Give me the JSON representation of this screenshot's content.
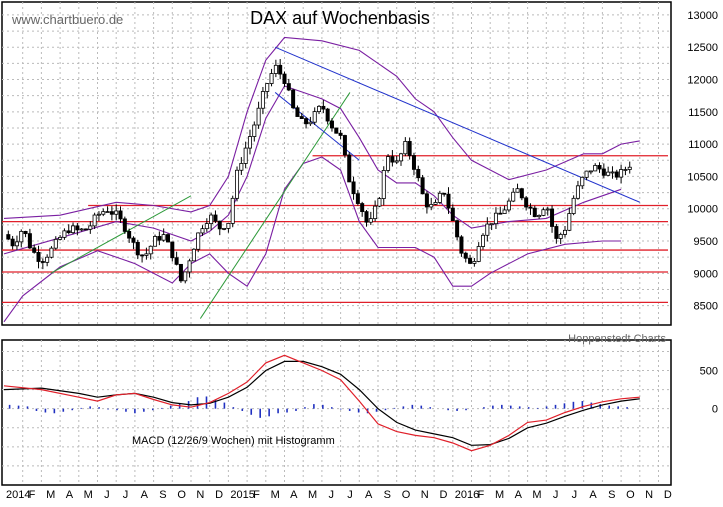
{
  "watermark": "www.chartbuero.de",
  "credit": "Hoppenstedt Charts",
  "chart_data": [
    {
      "type": "candlestick",
      "title": "DAX auf Wochenbasis",
      "xlabel": "",
      "ylabel": "",
      "ylim": [
        8200,
        13200
      ],
      "x_ticks": [
        "2014",
        "F",
        "M",
        "A",
        "M",
        "J",
        "J",
        "A",
        "S",
        "O",
        "N",
        "D",
        "2015",
        "F",
        "M",
        "A",
        "M",
        "J",
        "J",
        "A",
        "S",
        "O",
        "N",
        "D",
        "2016",
        "F",
        "M",
        "A",
        "M",
        "J",
        "J",
        "A",
        "S",
        "O",
        "N",
        "D"
      ],
      "y_ticks": [
        8500,
        9000,
        9500,
        10000,
        10500,
        11000,
        11500,
        12000,
        12500,
        13000
      ],
      "horizontal_levels": [
        8550,
        9020,
        9360,
        9800,
        10050,
        10820
      ],
      "close_path": [
        [
          0.0,
          9600
        ],
        [
          0.5,
          9450
        ],
        [
          1.0,
          9700
        ],
        [
          1.5,
          9350
        ],
        [
          2.0,
          9200
        ],
        [
          2.5,
          9350
        ],
        [
          3.0,
          9550
        ],
        [
          3.5,
          9700
        ],
        [
          4.0,
          9650
        ],
        [
          4.5,
          9700
        ],
        [
          5.0,
          9900
        ],
        [
          5.5,
          10000
        ],
        [
          6.0,
          9900
        ],
        [
          6.5,
          9700
        ],
        [
          7.0,
          9400
        ],
        [
          7.5,
          9250
        ],
        [
          8.0,
          9500
        ],
        [
          8.5,
          9600
        ],
        [
          9.0,
          9300
        ],
        [
          9.5,
          8850
        ],
        [
          10.0,
          9300
        ],
        [
          10.5,
          9700
        ],
        [
          11.0,
          9900
        ],
        [
          11.5,
          9700
        ],
        [
          12.0,
          9800
        ],
        [
          12.5,
          10600
        ],
        [
          13.0,
          11000
        ],
        [
          13.5,
          11400
        ],
        [
          14.0,
          11900
        ],
        [
          14.5,
          12200
        ],
        [
          15.0,
          12000
        ],
        [
          15.5,
          11500
        ],
        [
          16.0,
          11300
        ],
        [
          16.5,
          11400
        ],
        [
          17.0,
          11600
        ],
        [
          17.5,
          11300
        ],
        [
          18.0,
          11100
        ],
        [
          18.5,
          10400
        ],
        [
          19.0,
          10100
        ],
        [
          19.5,
          9700
        ],
        [
          20.0,
          10100
        ],
        [
          20.5,
          10850
        ],
        [
          21.0,
          10700
        ],
        [
          21.5,
          11000
        ],
        [
          22.0,
          10600
        ],
        [
          22.5,
          10100
        ],
        [
          23.0,
          10000
        ],
        [
          23.5,
          10300
        ],
        [
          24.0,
          9800
        ],
        [
          24.5,
          9300
        ],
        [
          25.0,
          9100
        ],
        [
          25.5,
          9600
        ],
        [
          26.0,
          9800
        ],
        [
          26.5,
          9900
        ],
        [
          27.0,
          10100
        ],
        [
          27.5,
          10300
        ],
        [
          28.0,
          10050
        ],
        [
          28.5,
          9900
        ],
        [
          29.0,
          10100
        ],
        [
          29.5,
          9500
        ],
        [
          30.0,
          9700
        ],
        [
          30.5,
          10200
        ],
        [
          31.0,
          10500
        ],
        [
          31.5,
          10650
        ],
        [
          32.0,
          10600
        ],
        [
          32.5,
          10500
        ],
        [
          33.0,
          10550
        ],
        [
          33.5,
          10700
        ]
      ],
      "trend_lines": [
        {
          "from": [
            10.5,
            8300
          ],
          "to": [
            18.5,
            11800
          ]
        },
        {
          "from": [
            2.5,
            9000
          ],
          "to": [
            10.0,
            10200
          ]
        },
        {
          "from": [
            14.5,
            12500
          ],
          "to": [
            34.0,
            10100
          ]
        },
        {
          "from": [
            14.5,
            11800
          ],
          "to": [
            19.0,
            10750
          ]
        }
      ],
      "bollinger": {
        "upper": [
          [
            0,
            9850
          ],
          [
            3,
            9900
          ],
          [
            6,
            10100
          ],
          [
            8,
            10050
          ],
          [
            10,
            9950
          ],
          [
            11,
            10050
          ],
          [
            12,
            10500
          ],
          [
            13,
            11500
          ],
          [
            14,
            12300
          ],
          [
            15,
            12650
          ],
          [
            17,
            12600
          ],
          [
            19,
            12450
          ],
          [
            21,
            12050
          ],
          [
            22,
            11700
          ],
          [
            23,
            11500
          ],
          [
            24,
            11100
          ],
          [
            25,
            10750
          ],
          [
            27,
            10450
          ],
          [
            29,
            10600
          ],
          [
            31,
            10850
          ],
          [
            32,
            10850
          ],
          [
            33,
            11000
          ],
          [
            34,
            11050
          ]
        ],
        "lower": [
          [
            0,
            8250
          ],
          [
            1,
            8650
          ],
          [
            3,
            9100
          ],
          [
            5,
            9350
          ],
          [
            7,
            9150
          ],
          [
            9,
            8850
          ],
          [
            10,
            9150
          ],
          [
            11,
            9300
          ],
          [
            12,
            9000
          ],
          [
            13,
            8800
          ],
          [
            14,
            9300
          ],
          [
            15,
            10300
          ],
          [
            16,
            10700
          ],
          [
            17,
            10800
          ],
          [
            18,
            10600
          ],
          [
            19,
            9800
          ],
          [
            20,
            9400
          ],
          [
            22,
            9400
          ],
          [
            23,
            9250
          ],
          [
            24,
            8800
          ],
          [
            25,
            8800
          ],
          [
            26,
            9000
          ],
          [
            28,
            9300
          ],
          [
            30,
            9450
          ],
          [
            32,
            9500
          ],
          [
            33,
            9500
          ]
        ],
        "middle": [
          [
            0,
            9300
          ],
          [
            3,
            9550
          ],
          [
            6,
            9800
          ],
          [
            8,
            9700
          ],
          [
            10,
            9500
          ],
          [
            11,
            9650
          ],
          [
            12,
            9900
          ],
          [
            13,
            10500
          ],
          [
            14,
            11400
          ],
          [
            15,
            11900
          ],
          [
            16,
            11800
          ],
          [
            17,
            11700
          ],
          [
            18,
            11550
          ],
          [
            19,
            11100
          ],
          [
            20,
            10600
          ],
          [
            21,
            10400
          ],
          [
            22,
            10400
          ],
          [
            23,
            10200
          ],
          [
            24,
            9900
          ],
          [
            25,
            9700
          ],
          [
            27,
            9800
          ],
          [
            29,
            9850
          ],
          [
            31,
            10100
          ],
          [
            33,
            10300
          ]
        ]
      }
    },
    {
      "type": "line",
      "title": "MACD (12/26/9 Wochen) mit Histogramm",
      "ylim": [
        -1000,
        900
      ],
      "y_ticks": [
        0,
        500
      ],
      "macd": [
        [
          0,
          300
        ],
        [
          2,
          250
        ],
        [
          4,
          150
        ],
        [
          5,
          100
        ],
        [
          6,
          180
        ],
        [
          7,
          200
        ],
        [
          8,
          120
        ],
        [
          9,
          50
        ],
        [
          10,
          20
        ],
        [
          11,
          80
        ],
        [
          12,
          200
        ],
        [
          13,
          350
        ],
        [
          14,
          600
        ],
        [
          15,
          700
        ],
        [
          16,
          600
        ],
        [
          17,
          500
        ],
        [
          18,
          380
        ],
        [
          19,
          100
        ],
        [
          20,
          -200
        ],
        [
          21,
          -300
        ],
        [
          22,
          -350
        ],
        [
          23,
          -380
        ],
        [
          24,
          -450
        ],
        [
          25,
          -550
        ],
        [
          26,
          -480
        ],
        [
          27,
          -350
        ],
        [
          28,
          -180
        ],
        [
          29,
          -150
        ],
        [
          30,
          -50
        ],
        [
          31,
          30
        ],
        [
          32,
          90
        ],
        [
          33,
          130
        ],
        [
          34,
          150
        ]
      ],
      "signal": [
        [
          0,
          250
        ],
        [
          2,
          270
        ],
        [
          4,
          200
        ],
        [
          5,
          150
        ],
        [
          6,
          180
        ],
        [
          7,
          200
        ],
        [
          8,
          150
        ],
        [
          9,
          80
        ],
        [
          10,
          50
        ],
        [
          11,
          70
        ],
        [
          12,
          150
        ],
        [
          13,
          280
        ],
        [
          14,
          500
        ],
        [
          15,
          620
        ],
        [
          16,
          620
        ],
        [
          17,
          550
        ],
        [
          18,
          450
        ],
        [
          19,
          250
        ],
        [
          20,
          0
        ],
        [
          21,
          -180
        ],
        [
          22,
          -280
        ],
        [
          23,
          -330
        ],
        [
          24,
          -380
        ],
        [
          25,
          -480
        ],
        [
          26,
          -470
        ],
        [
          27,
          -390
        ],
        [
          28,
          -250
        ],
        [
          29,
          -190
        ],
        [
          30,
          -100
        ],
        [
          31,
          -20
        ],
        [
          32,
          50
        ],
        [
          33,
          100
        ],
        [
          34,
          130
        ]
      ],
      "histogram": [
        50,
        40,
        30,
        -30,
        -50,
        -60,
        -40,
        -20,
        10,
        30,
        20,
        -10,
        -20,
        -40,
        -60,
        -40,
        -20,
        10,
        40,
        70,
        100,
        150,
        160,
        120,
        80,
        20,
        -30,
        -80,
        -120,
        -100,
        -60,
        -50,
        -30,
        20,
        60,
        50,
        20,
        -10,
        -30,
        -50,
        -60,
        -40,
        -20,
        10,
        30,
        50,
        40,
        20,
        0,
        -20,
        -30,
        -20,
        0,
        20,
        40,
        50,
        40,
        30,
        20,
        10,
        30,
        50,
        70,
        90,
        100,
        80,
        60,
        40,
        30,
        20
      ]
    }
  ]
}
